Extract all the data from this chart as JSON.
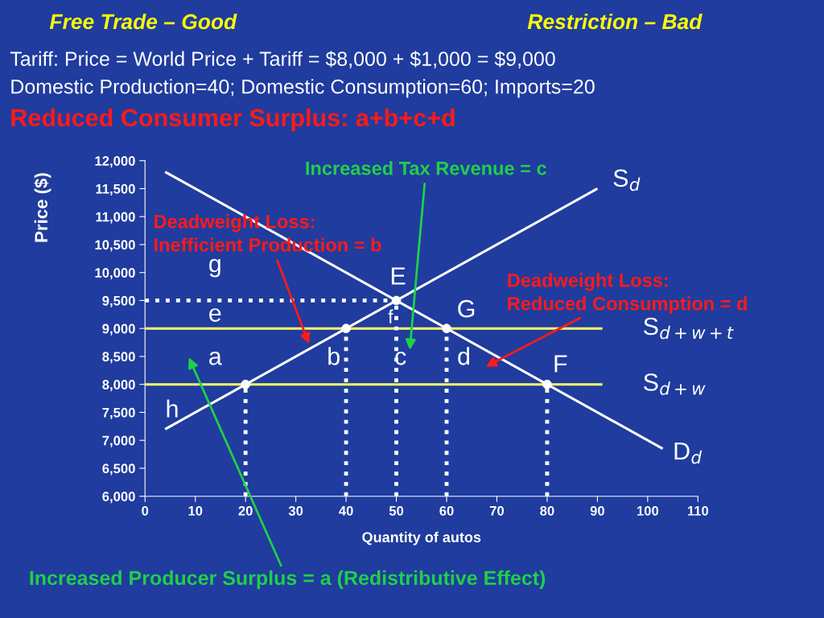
{
  "chart_data": {
    "type": "line",
    "xlabel": "Quantity of autos",
    "ylabel": "Price ($)",
    "xlim": [
      0,
      110
    ],
    "xticks": [
      0,
      10,
      20,
      30,
      40,
      50,
      60,
      70,
      80,
      90,
      100,
      110
    ],
    "ylim": [
      6000,
      12000
    ],
    "yticks": [
      {
        "value": 6000,
        "label": "6,000"
      },
      {
        "value": 6500,
        "label": "6,500"
      },
      {
        "value": 7000,
        "label": "7,000"
      },
      {
        "value": 7500,
        "label": "7,500"
      },
      {
        "value": 8000,
        "label": "8,000"
      },
      {
        "value": 8500,
        "label": "8,500"
      },
      {
        "value": 9000,
        "label": "9,000"
      },
      {
        "value": 9500,
        "label": "9,500"
      },
      {
        "value": 10000,
        "label": "10,000"
      },
      {
        "value": 10500,
        "label": "10,500"
      },
      {
        "value": 11000,
        "label": "11,000"
      },
      {
        "value": 11500,
        "label": "11,500"
      },
      {
        "value": 12000,
        "label": "12,000"
      }
    ],
    "series": [
      {
        "name": "S$_{d}$",
        "color": "#ffffff",
        "x": [
          4,
          90
        ],
        "values": [
          7200,
          11500
        ]
      },
      {
        "name": "D$_{d}$",
        "color": "#ffffff",
        "x": [
          4,
          103
        ],
        "values": [
          11800,
          6850
        ]
      },
      {
        "name": "S$_{d+w+t}$",
        "color": "#ffff66",
        "x": [
          0,
          91
        ],
        "values": [
          9000,
          9000
        ]
      },
      {
        "name": "S$_{d+w}$",
        "color": "#ffff66",
        "x": [
          0,
          91
        ],
        "values": [
          8000,
          8000
        ]
      },
      {
        "line_style": "dotted",
        "color": "#ffffff",
        "x": [
          0,
          50
        ],
        "values": [
          9500,
          9500
        ]
      },
      {
        "line_style": "dotted",
        "color": "#ffffff",
        "x": [
          20,
          20
        ],
        "values": [
          6000,
          8000
        ]
      },
      {
        "line_style": "dotted",
        "color": "#ffffff",
        "x": [
          40,
          40
        ],
        "values": [
          6000,
          9000
        ]
      },
      {
        "line_style": "dotted",
        "color": "#ffffff",
        "x": [
          50,
          50
        ],
        "values": [
          6000,
          9500
        ]
      },
      {
        "line_style": "dotted",
        "color": "#ffffff",
        "x": [
          60,
          60
        ],
        "values": [
          6000,
          9000
        ]
      },
      {
        "line_style": "dotted",
        "color": "#ffffff",
        "x": [
          80,
          80
        ],
        "values": [
          6000,
          8000
        ]
      },
      {
        "type": "scatter",
        "marker": "circle",
        "color": "#ffffff",
        "x": [
          20,
          40,
          50,
          60,
          80
        ],
        "values": [
          8000,
          9000,
          9500,
          9000,
          8000
        ]
      }
    ],
    "annotations": [
      "Free Trade – Good",
      "Restriction – Bad",
      "Tariff: Price = World Price + Tariff = $8,000 + $1,000 = $9,000",
      "Domestic Production=40; Domestic Consumption=60; Imports=20",
      "Reduced Consumer Surplus: a+b+c+d",
      "Increased Producer Surplus = a (Redistributive Effect)",
      "Increased Tax Revenue = c",
      "Deadweight Loss:\nInefficient Production = b",
      "Deadweight Loss:\nReduced Consumption = d",
      "g",
      "e",
      "a",
      "b",
      "c",
      "d",
      "h",
      "f",
      "E",
      "G",
      "F"
    ]
  }
}
